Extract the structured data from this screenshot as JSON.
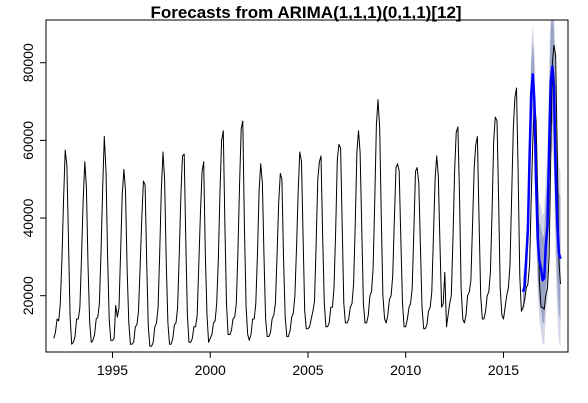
{
  "chart_data": {
    "type": "line",
    "title": "Forecasts from ARIMA(1,1,1)(0,1,1)[12]",
    "xlabel": "",
    "ylabel": "",
    "xlim": [
      1991.6,
      2018.3
    ],
    "ylim": [
      5500,
      91000
    ],
    "x_ticks": [
      1995,
      2000,
      2005,
      2010,
      2015
    ],
    "x_tick_labels": [
      "1995",
      "2000",
      "2005",
      "2010",
      "2015"
    ],
    "y_ticks": [
      20000,
      40000,
      60000,
      80000
    ],
    "y_tick_labels": [
      "20000",
      "40000",
      "60000",
      "80000"
    ],
    "grid": false,
    "legend": "none",
    "colors": {
      "history": "#000000",
      "forecast": "#0000ff",
      "interval_80": "#9ca3c8",
      "interval_95": "#d2d6e6"
    },
    "series": [
      {
        "role": "history",
        "x_start": 1992.0,
        "frequency": 12,
        "values": [
          9000,
          10500,
          14000,
          13500,
          18000,
          30000,
          45000,
          57500,
          53500,
          34000,
          14500,
          7500,
          8000,
          9500,
          14000,
          14000,
          17000,
          30000,
          44000,
          54500,
          48000,
          28000,
          13000,
          8000,
          8500,
          10000,
          14000,
          14500,
          18000,
          32000,
          48000,
          61000,
          52000,
          30000,
          14000,
          8500,
          8500,
          9000,
          17500,
          14500,
          17000,
          31000,
          46000,
          52500,
          47000,
          27000,
          13000,
          7500,
          7500,
          8000,
          12000,
          12500,
          16000,
          28000,
          40000,
          49500,
          48500,
          28500,
          12000,
          7000,
          7000,
          8000,
          12000,
          13000,
          17000,
          31000,
          47000,
          57000,
          50000,
          29000,
          13000,
          7500,
          7500,
          9000,
          12500,
          13000,
          17000,
          31000,
          46000,
          56000,
          56500,
          34000,
          15000,
          8000,
          8000,
          9000,
          12000,
          12000,
          15000,
          28000,
          41000,
          52000,
          54500,
          31000,
          15000,
          8000,
          9000,
          10000,
          13000,
          13500,
          18000,
          30000,
          47000,
          60000,
          62500,
          38000,
          18000,
          10000,
          10000,
          11000,
          14000,
          14500,
          18000,
          31000,
          49000,
          63000,
          65000,
          38000,
          17000,
          10000,
          8500,
          10000,
          14000,
          14000,
          18000,
          31000,
          47000,
          54000,
          49000,
          30000,
          14000,
          9500,
          9500,
          10500,
          14000,
          15000,
          18000,
          30000,
          44000,
          51500,
          50000,
          30000,
          14500,
          9500,
          9500,
          11000,
          14500,
          15500,
          20000,
          33000,
          47000,
          57000,
          54500,
          35000,
          16000,
          11500,
          11500,
          12000,
          14000,
          16000,
          18500,
          33000,
          50000,
          54500,
          56000,
          36000,
          18000,
          12000,
          12000,
          13000,
          17000,
          17000,
          22000,
          37000,
          55000,
          59000,
          58000,
          38000,
          18000,
          13000,
          13000,
          14000,
          17000,
          18000,
          23000,
          38000,
          57000,
          62500,
          57000,
          38000,
          18000,
          13000,
          13000,
          15000,
          20000,
          21000,
          27000,
          45000,
          64000,
          70500,
          63000,
          40000,
          20000,
          14000,
          13000,
          15000,
          19000,
          20000,
          25000,
          39000,
          53000,
          54000,
          52000,
          35000,
          18000,
          12000,
          12000,
          14000,
          17000,
          18000,
          22000,
          37000,
          52000,
          53000,
          49000,
          33000,
          17000,
          11500,
          11500,
          12500,
          16000,
          17000,
          21000,
          35000,
          50000,
          56000,
          51000,
          34000,
          17000,
          18000,
          26000,
          12000,
          15000,
          18000,
          20000,
          35000,
          52000,
          62000,
          63500,
          46000,
          22000,
          14000,
          13000,
          15000,
          20000,
          21000,
          24000,
          38000,
          53000,
          59000,
          61000,
          40000,
          20000,
          14000,
          14000,
          16000,
          20000,
          21000,
          26000,
          42000,
          60000,
          66000,
          65000,
          45000,
          22000,
          15000,
          14000,
          17000,
          20000,
          22000,
          28000,
          45000,
          63000,
          71000,
          73500,
          52000,
          25000,
          16000,
          17000,
          19000,
          22000,
          23000,
          28000,
          45000,
          60000,
          70500,
          65000,
          46000,
          24000,
          17000,
          17000,
          16500,
          20000,
          22000,
          30000,
          55000,
          80000,
          84500,
          82000,
          58000,
          29000,
          23000
        ]
      },
      {
        "role": "forecast",
        "x_start": 2016.0,
        "frequency": 12,
        "values": [
          21000,
          22500,
          30000,
          37000,
          56000,
          72000,
          77000,
          70000,
          49000,
          35000,
          29000,
          27000,
          24000,
          24500,
          33000,
          38000,
          58000,
          75000,
          79000,
          74000,
          52000,
          39000,
          31000,
          29500
        ],
        "lower_80": [
          18000,
          19000,
          25500,
          31500,
          49500,
          64500,
          68500,
          61000,
          40000,
          25500,
          19000,
          16500,
          13000,
          13000,
          21000,
          25500,
          45000,
          61500,
          65000,
          59500,
          37000,
          23500,
          15500,
          13500
        ],
        "upper_80": [
          24000,
          26000,
          34500,
          42500,
          62500,
          79500,
          85500,
          79000,
          58000,
          44500,
          39000,
          37500,
          35000,
          36000,
          45000,
          50500,
          71000,
          88500,
          93000,
          88500,
          67000,
          54500,
          46500,
          45500
        ],
        "lower_95": [
          16000,
          17000,
          23000,
          28500,
          46000,
          60500,
          64000,
          56500,
          35000,
          20500,
          14000,
          11000,
          7500,
          7500,
          15000,
          19000,
          38500,
          54500,
          58000,
          52000,
          29500,
          16000,
          8000,
          7000
        ],
        "upper_95": [
          26000,
          28000,
          37000,
          45500,
          66000,
          83500,
          90000,
          83500,
          63000,
          49500,
          44000,
          43000,
          40500,
          41500,
          51000,
          57000,
          77500,
          95500,
          100000,
          96000,
          74500,
          62000,
          54000,
          52000
        ]
      }
    ]
  }
}
